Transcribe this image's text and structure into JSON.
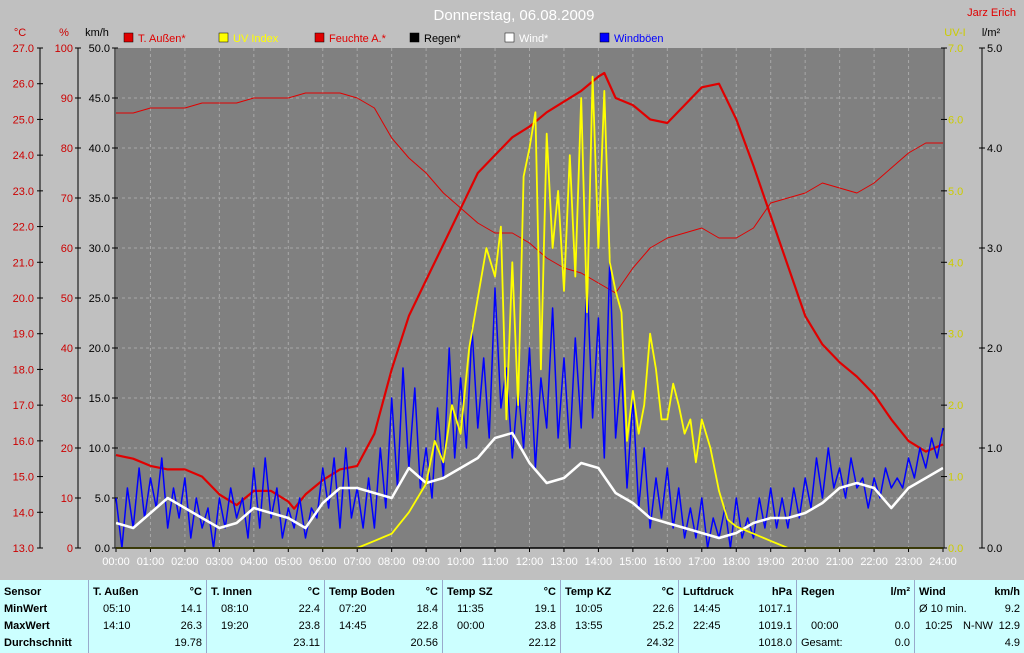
{
  "chart_data": {
    "type": "line",
    "title": "Donnerstag, 06.08.2009",
    "author": "Jarz Erich",
    "x_ticks": [
      "00:00",
      "01:00",
      "02:00",
      "03:00",
      "04:00",
      "05:00",
      "06:00",
      "07:00",
      "08:00",
      "09:00",
      "10:00",
      "11:00",
      "12:00",
      "13:00",
      "14:00",
      "15:00",
      "16:00",
      "17:00",
      "18:00",
      "19:00",
      "20:00",
      "21:00",
      "22:00",
      "23:00",
      "24:00"
    ],
    "xlim": [
      0,
      24
    ],
    "axes": {
      "temp": {
        "unit": "°C",
        "min": 13.0,
        "max": 27.0,
        "ticks": [
          "13.0",
          "14.0",
          "15.0",
          "16.0",
          "17.0",
          "18.0",
          "19.0",
          "20.0",
          "21.0",
          "22.0",
          "23.0",
          "24.0",
          "25.0",
          "26.0",
          "27.0"
        ],
        "color": "#cc0000"
      },
      "humidity": {
        "unit": "%",
        "min": 0,
        "max": 100,
        "ticks": [
          "0",
          "10",
          "20",
          "30",
          "40",
          "50",
          "60",
          "70",
          "80",
          "90",
          "100"
        ],
        "color": "#cc0000"
      },
      "wind": {
        "unit": "km/h",
        "min": 0,
        "max": 50,
        "ticks": [
          "0.0",
          "5.0",
          "10.0",
          "15.0",
          "20.0",
          "25.0",
          "30.0",
          "35.0",
          "40.0",
          "45.0",
          "50.0"
        ],
        "color": "#000000"
      },
      "uv": {
        "unit": "UV-I",
        "min": 0,
        "max": 7,
        "ticks": [
          "0.0",
          "1.0",
          "2.0",
          "3.0",
          "4.0",
          "5.0",
          "6.0",
          "7.0"
        ],
        "color": "#cccc00"
      },
      "rain": {
        "unit": "l/m²",
        "min": 0,
        "max": 5,
        "ticks": [
          "0.0",
          "1.0",
          "2.0",
          "3.0",
          "4.0",
          "5.0"
        ],
        "color": "#000000"
      }
    },
    "legend": [
      {
        "name": "T. Außen*",
        "color": "#e00000"
      },
      {
        "name": "UV Index",
        "color": "#ffff00"
      },
      {
        "name": "Feuchte A.*",
        "color": "#e00000"
      },
      {
        "name": "Regen*",
        "color": "#000000"
      },
      {
        "name": "Wind*",
        "color": "#ffffff"
      },
      {
        "name": "Windböen",
        "color": "#0000ff"
      }
    ],
    "series": [
      {
        "name": "T. Außen*",
        "axis": "temp",
        "color": "#e00000",
        "width": 2.2,
        "x": [
          0,
          0.5,
          1,
          1.5,
          2,
          2.5,
          3,
          3.5,
          4,
          4.5,
          5,
          5.17,
          5.5,
          6,
          6.5,
          7,
          7.5,
          8,
          8.5,
          9,
          9.5,
          10,
          10.5,
          11,
          11.5,
          12,
          12.5,
          13,
          13.5,
          14,
          14.17,
          14.5,
          15,
          15.5,
          16,
          16.5,
          17,
          17.5,
          18,
          18.5,
          19,
          19.5,
          20,
          20.5,
          21,
          21.5,
          22,
          22.5,
          23,
          23.5,
          24
        ],
        "y": [
          15.6,
          15.5,
          15.3,
          15.2,
          15.2,
          15.0,
          14.5,
          14.2,
          14.6,
          14.6,
          14.3,
          14.1,
          14.5,
          14.9,
          15.2,
          15.3,
          16.2,
          18.0,
          19.5,
          20.5,
          21.5,
          22.5,
          23.5,
          24.0,
          24.5,
          24.8,
          25.2,
          25.5,
          25.8,
          26.2,
          26.3,
          25.6,
          25.4,
          25.0,
          24.9,
          25.4,
          25.9,
          26.0,
          25.0,
          23.7,
          22.3,
          20.9,
          19.5,
          18.7,
          18.2,
          17.8,
          17.3,
          16.6,
          16.0,
          15.7,
          15.9
        ]
      },
      {
        "name": "Feuchte A.*",
        "axis": "humidity",
        "color": "#e00000",
        "width": 1,
        "x": [
          0,
          0.5,
          1,
          1.5,
          2,
          2.5,
          3,
          3.5,
          4,
          4.5,
          5,
          5.5,
          6,
          6.5,
          7,
          7.5,
          8,
          8.5,
          9,
          9.5,
          10,
          10.5,
          11,
          11.5,
          12,
          12.5,
          13,
          13.5,
          14,
          14.5,
          15,
          15.5,
          16,
          16.5,
          17,
          17.5,
          18,
          18.5,
          19,
          19.5,
          20,
          20.5,
          21,
          21.5,
          22,
          22.5,
          23,
          23.5,
          24
        ],
        "y": [
          87,
          87,
          88,
          88,
          88,
          89,
          89,
          89,
          90,
          90,
          90,
          91,
          91,
          91,
          90,
          88,
          82,
          78,
          75,
          71,
          68,
          65,
          63,
          63,
          61,
          58,
          56,
          55,
          53,
          51,
          56,
          60,
          62,
          63,
          64,
          62,
          62,
          64,
          69,
          70,
          71,
          73,
          72,
          71,
          73,
          76,
          79,
          81,
          81
        ]
      },
      {
        "name": "Windböen",
        "axis": "wind",
        "color": "#0000ff",
        "width": 1.5,
        "x": [
          0,
          0.17,
          0.33,
          0.5,
          0.67,
          0.83,
          1,
          1.17,
          1.33,
          1.5,
          1.67,
          1.83,
          2,
          2.17,
          2.33,
          2.5,
          2.67,
          2.83,
          3,
          3.17,
          3.33,
          3.5,
          3.67,
          3.83,
          4,
          4.17,
          4.33,
          4.5,
          4.67,
          4.83,
          5,
          5.17,
          5.33,
          5.5,
          5.67,
          5.83,
          6,
          6.17,
          6.33,
          6.5,
          6.67,
          6.83,
          7,
          7.17,
          7.33,
          7.5,
          7.67,
          7.83,
          8,
          8.17,
          8.33,
          8.5,
          8.67,
          8.83,
          9,
          9.17,
          9.33,
          9.5,
          9.67,
          9.83,
          10,
          10.17,
          10.33,
          10.5,
          10.67,
          10.83,
          11,
          11.17,
          11.33,
          11.5,
          11.67,
          11.83,
          12,
          12.17,
          12.33,
          12.5,
          12.67,
          12.83,
          13,
          13.17,
          13.33,
          13.5,
          13.67,
          13.83,
          14,
          14.17,
          14.33,
          14.5,
          14.67,
          14.83,
          15,
          15.17,
          15.33,
          15.5,
          15.67,
          15.83,
          16,
          16.17,
          16.33,
          16.5,
          16.67,
          16.83,
          17,
          17.17,
          17.33,
          17.5,
          17.67,
          17.83,
          18,
          18.17,
          18.33,
          18.5,
          18.67,
          18.83,
          19,
          19.17,
          19.33,
          19.5,
          19.67,
          19.83,
          20,
          20.17,
          20.33,
          20.5,
          20.67,
          20.83,
          21,
          21.17,
          21.33,
          21.5,
          21.67,
          21.83,
          22,
          22.17,
          22.33,
          22.5,
          22.67,
          22.83,
          23,
          23.17,
          23.33,
          23.5,
          23.67,
          23.83,
          24
        ],
        "y": [
          5,
          0,
          6,
          2,
          8,
          3,
          7,
          4,
          9,
          2,
          6,
          3,
          7,
          1,
          5,
          2,
          4,
          0,
          5,
          2,
          6,
          3,
          5,
          1,
          8,
          2,
          9,
          3,
          6,
          1,
          4,
          2,
          5,
          1,
          4,
          3,
          8,
          4,
          9,
          2,
          10,
          3,
          6,
          2,
          7,
          2,
          10,
          4,
          15,
          6,
          18,
          8,
          16,
          6,
          10,
          5,
          14,
          7,
          20,
          9,
          17,
          10,
          22,
          12,
          19,
          11,
          26,
          14,
          18,
          9,
          16,
          10,
          20,
          8,
          17,
          12,
          24,
          11,
          19,
          10,
          21,
          12,
          27,
          13,
          23,
          9,
          29,
          11,
          18,
          6,
          15,
          4,
          10,
          2,
          7,
          3,
          8,
          2,
          6,
          1,
          4,
          1,
          5,
          0,
          3,
          1,
          4,
          0,
          5,
          1,
          3,
          1,
          5,
          2,
          6,
          2,
          5,
          2,
          6,
          3,
          7,
          4,
          9,
          5,
          10,
          6,
          8,
          5,
          9,
          6,
          7,
          4,
          7,
          5,
          8,
          6,
          7,
          6,
          9,
          7,
          10,
          8,
          11,
          9,
          12
        ]
      },
      {
        "name": "Wind*",
        "axis": "wind",
        "color": "#ffffff",
        "width": 2.5,
        "x": [
          0,
          0.5,
          1,
          1.5,
          2,
          2.5,
          3,
          3.5,
          4,
          4.5,
          5,
          5.5,
          6,
          6.5,
          7,
          7.5,
          8,
          8.5,
          9,
          9.5,
          10,
          10.5,
          11,
          11.5,
          12,
          12.5,
          13,
          13.5,
          14,
          14.5,
          15,
          15.5,
          16,
          16.5,
          17,
          17.5,
          18,
          18.5,
          19,
          19.5,
          20,
          20.5,
          21,
          21.5,
          22,
          22.5,
          23,
          23.5,
          24
        ],
        "y": [
          2.5,
          2.0,
          3.5,
          5.0,
          4.0,
          3.0,
          2.0,
          2.5,
          4.0,
          3.5,
          3.0,
          2.0,
          4.5,
          6.0,
          6.0,
          5.5,
          5.0,
          8.0,
          6.5,
          7.0,
          8.0,
          9.0,
          11.0,
          11.5,
          8.5,
          6.5,
          7.0,
          8.5,
          8.0,
          5.5,
          4.5,
          3.0,
          2.5,
          2.0,
          1.5,
          1.0,
          1.5,
          2.5,
          3.0,
          3.0,
          3.5,
          4.5,
          6.0,
          6.5,
          6.0,
          4.0,
          6.0,
          7.0,
          8.0
        ]
      },
      {
        "name": "UV Index",
        "axis": "uv",
        "color": "#ffff00",
        "width": 1.8,
        "x": [
          0,
          7,
          7.5,
          8,
          8.5,
          9,
          9.25,
          9.5,
          9.75,
          10,
          10.25,
          10.5,
          10.75,
          11,
          11.17,
          11.33,
          11.5,
          11.67,
          11.83,
          12,
          12.17,
          12.33,
          12.5,
          12.67,
          12.83,
          13,
          13.17,
          13.33,
          13.5,
          13.67,
          13.83,
          14,
          14.17,
          14.33,
          14.5,
          14.67,
          14.83,
          15,
          15.17,
          15.33,
          15.5,
          15.67,
          15.83,
          16,
          16.17,
          16.33,
          16.5,
          16.67,
          16.83,
          17,
          17.25,
          17.5,
          17.75,
          18,
          18.5,
          19,
          19.5,
          20,
          24
        ],
        "y": [
          0,
          0,
          0.1,
          0.2,
          0.5,
          0.9,
          1.5,
          1.2,
          2.0,
          1.6,
          2.8,
          3.5,
          4.2,
          3.8,
          4.5,
          1.8,
          4.0,
          2.0,
          5.2,
          5.6,
          6.1,
          2.5,
          5.8,
          4.2,
          5.0,
          3.6,
          5.5,
          3.8,
          6.3,
          3.3,
          6.6,
          4.2,
          6.4,
          4.0,
          3.6,
          3.3,
          1.5,
          2.2,
          1.6,
          2.0,
          3.0,
          2.5,
          1.8,
          1.8,
          2.3,
          2.0,
          1.6,
          1.8,
          1.2,
          1.8,
          1.4,
          0.8,
          0.4,
          0.3,
          0.2,
          0.1,
          0,
          0,
          0
        ]
      },
      {
        "name": "Regen*",
        "axis": "rain",
        "color": "#000000",
        "width": 1.5,
        "x": [
          0,
          24
        ],
        "y": [
          0,
          0
        ]
      }
    ]
  },
  "table": {
    "columns": [
      {
        "header": "Sensor",
        "rows": [
          "MinWert",
          "MaxWert",
          "Durchschnitt"
        ]
      },
      {
        "header": "T. Außen",
        "unit": "°C",
        "rows": [
          [
            "05:10",
            "14.1"
          ],
          [
            "14:10",
            "26.3"
          ],
          [
            "",
            "19.78"
          ]
        ]
      },
      {
        "header": "T. Innen",
        "unit": "°C",
        "rows": [
          [
            "08:10",
            "22.4"
          ],
          [
            "19:20",
            "23.8"
          ],
          [
            "",
            "23.11"
          ]
        ]
      },
      {
        "header": "Temp Boden",
        "unit": "°C",
        "rows": [
          [
            "07:20",
            "18.4"
          ],
          [
            "14:45",
            "22.8"
          ],
          [
            "",
            "20.56"
          ]
        ]
      },
      {
        "header": "Temp SZ",
        "unit": "°C",
        "rows": [
          [
            "11:35",
            "19.1"
          ],
          [
            "00:00",
            "23.8"
          ],
          [
            "",
            "22.12"
          ]
        ]
      },
      {
        "header": "Temp KZ",
        "unit": "°C",
        "rows": [
          [
            "10:05",
            "22.6"
          ],
          [
            "13:55",
            "25.2"
          ],
          [
            "",
            "24.32"
          ]
        ]
      },
      {
        "header": "Luftdruck",
        "unit": "hPa",
        "rows": [
          [
            "14:45",
            "1017.1"
          ],
          [
            "22:45",
            "1019.1"
          ],
          [
            "",
            "1018.0"
          ]
        ]
      },
      {
        "header": "Regen",
        "unit": "l/m²",
        "rows": [
          [
            "",
            ""
          ],
          [
            "00:00",
            "0.0"
          ],
          [
            "Gesamt:",
            "0.0"
          ]
        ]
      },
      {
        "header": "Wind",
        "unit": "km/h",
        "rows": [
          [
            "Ø 10 min.",
            "",
            "9.2"
          ],
          [
            "10:25",
            "N-NW",
            "12.9"
          ],
          [
            "",
            "",
            "4.9"
          ]
        ]
      }
    ]
  }
}
